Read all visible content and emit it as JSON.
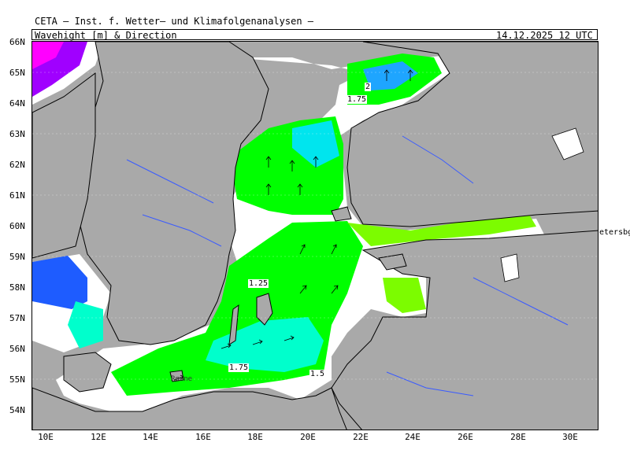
{
  "header": {
    "organization": "CETA — Inst. f. Wetter— und Klimafolgenanalysen —",
    "panel_title": "Wavehight [m] & Direction",
    "valid_time": "14.12.2025 12 UTC"
  },
  "axes": {
    "lat_labels": [
      "66N",
      "65N",
      "64N",
      "63N",
      "62N",
      "61N",
      "60N",
      "59N",
      "58N",
      "57N",
      "56N",
      "55N",
      "54N"
    ],
    "lon_labels": [
      "10E",
      "12E",
      "14E",
      "16E",
      "18E",
      "20E",
      "22E",
      "24E",
      "26E",
      "28E",
      "30E"
    ]
  },
  "map": {
    "contour_labels": [
      "2",
      "1.75",
      "1.25",
      "1.75",
      "1.5"
    ],
    "place_labels": [
      "Rønne"
    ],
    "outside_label": "etersbg",
    "colors": {
      "land": "#a9a9a9",
      "sea_calm": "#ffffff",
      "wave_0_75": "#7cfc00",
      "wave_1_0": "#00ff00",
      "wave_1_25": "#2ef07a",
      "wave_1_5": "#00ffcc",
      "wave_1_75": "#00e5ee",
      "wave_2_0": "#1ea5ff",
      "wave_3": "#1e5cff",
      "wave_4": "#a000ff",
      "wave_5": "#ff00ff",
      "coastline": "#000000",
      "rivers": "#3a5bff"
    }
  }
}
